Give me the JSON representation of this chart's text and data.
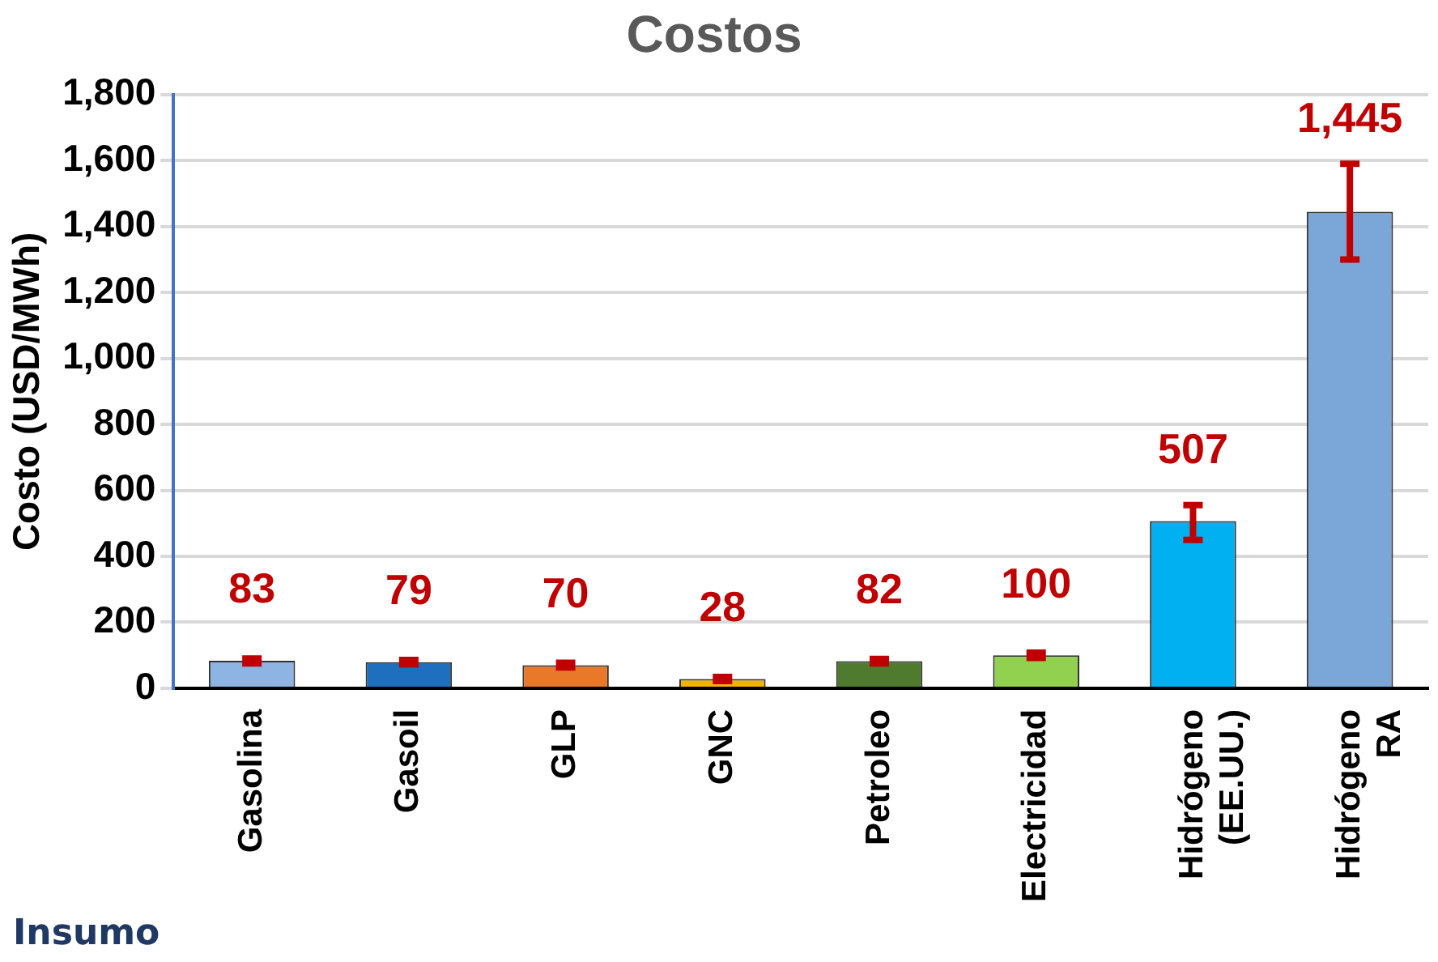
{
  "chart_data": {
    "type": "bar",
    "title": "Costos",
    "xlabel": "Insumo",
    "ylabel": "Costo (USD/MWh)",
    "categories": [
      "Gasolina",
      "Gasoil",
      "GLP",
      "GNC",
      "Petroleo",
      "Electricidad",
      "Hidrógeno (EE.UU.)",
      "Hidrógeno RA"
    ],
    "values": [
      83,
      79,
      70,
      28,
      82,
      100,
      507,
      1445
    ],
    "colors": [
      "#8db4e2",
      "#1f6fbf",
      "#e8782a",
      "#f0b400",
      "#4f7b2f",
      "#92d050",
      "#00b0f0",
      "#7aa7d8"
    ],
    "errors": [
      [
        75,
        90
      ],
      [
        72,
        86
      ],
      [
        63,
        77
      ],
      [
        22,
        34
      ],
      [
        75,
        89
      ],
      [
        92,
        108
      ],
      [
        450,
        555
      ],
      [
        1300,
        1590
      ]
    ],
    "value_labels": [
      "83",
      "79",
      "70",
      "28",
      "82",
      "100",
      "507",
      "1,445"
    ],
    "ylim": [
      0,
      1800
    ],
    "yticks": [
      0,
      200,
      400,
      600,
      800,
      {
        "value": 1000,
        "label": "1,000"
      },
      {
        "value": 1200,
        "label": "1,200"
      },
      {
        "value": 1400,
        "label": "1,400"
      },
      {
        "value": 1600,
        "label": "1,600"
      },
      {
        "value": 1800,
        "label": "1,800"
      }
    ],
    "grid": "y",
    "legend": false
  }
}
